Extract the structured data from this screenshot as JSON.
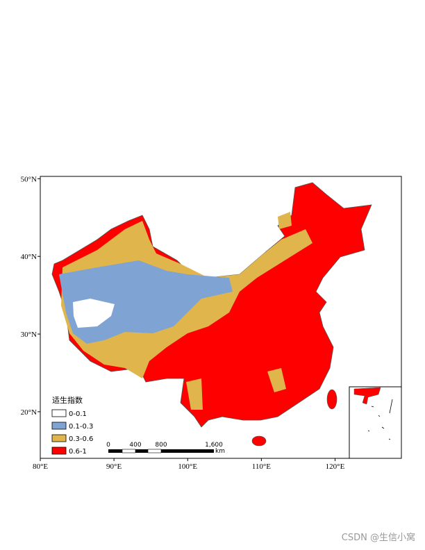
{
  "map": {
    "xlim": [
      80,
      129
    ],
    "ylim": [
      14,
      50.3
    ],
    "xticks": [
      {
        "value": 80,
        "label": "80°E"
      },
      {
        "value": 90,
        "label": "90°E"
      },
      {
        "value": 100,
        "label": "100°E"
      },
      {
        "value": 110,
        "label": "110°E"
      },
      {
        "value": 120,
        "label": "120°E"
      }
    ],
    "yticks": [
      {
        "value": 20,
        "label": "20°N"
      },
      {
        "value": 30,
        "label": "30°N"
      },
      {
        "value": 40,
        "label": "40°N"
      },
      {
        "value": 50,
        "label": "50°N"
      }
    ],
    "legend": {
      "title": "适生指数",
      "items": [
        {
          "label": "0-0.1",
          "color": "#ffffff"
        },
        {
          "label": "0.1-0.3",
          "color": "#7fa3d3"
        },
        {
          "label": "0.3-0.6",
          "color": "#e0b54c"
        },
        {
          "label": "0.6-1",
          "color": "#ff0000"
        }
      ]
    },
    "scale_bar": {
      "labels": [
        "0",
        "400",
        "800",
        "1,600"
      ],
      "unit": "km"
    }
  },
  "watermark": "CSDN @生信小窝"
}
